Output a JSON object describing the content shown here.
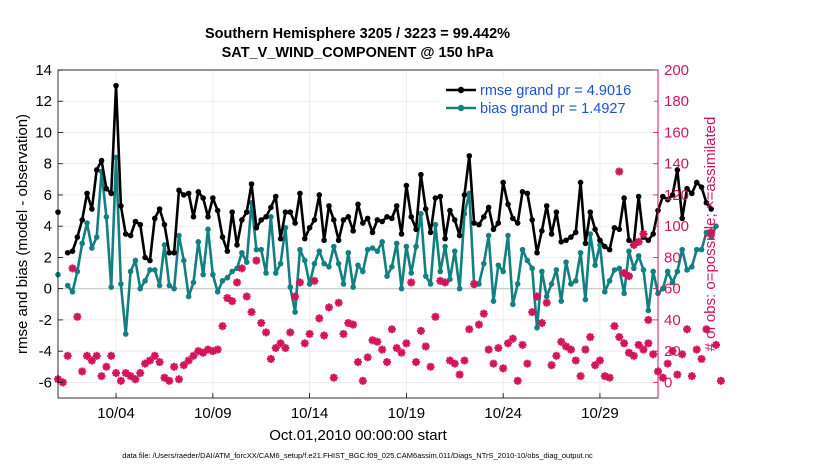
{
  "title": {
    "line1": "Southern Hemisphere 3205 / 3223 = 99.442%",
    "line2": "SAT_V_WIND_COMPONENT @ 150 hPa"
  },
  "footer": "data file: /Users/raeder/DAI/ATM_forcXX/CAM6_setup/f.e21.FHIST_BGC.f09_025.CAM6assim.011/Diags_NTrS_2010-10/obs_diag_output.nc",
  "colors": {
    "rmse": "#000000",
    "bias": "#128080",
    "obs": "#d4145a",
    "right_axis": "#d4145a",
    "legend_text": "#1a52d6",
    "zero": "#c8c8c8"
  },
  "chart_data": {
    "type": "line",
    "xlabel": "Oct.01,2010 00:00:00 start",
    "ylabel_left": "rmse and bias (model - observation)",
    "ylabel_right": "# of obs: o=possible; ×=assimilated",
    "x_start_day": 1.0,
    "x_step_days": 0.25,
    "xlim": [
      1.0,
      32.0
    ],
    "ylim_left": [
      -7,
      14
    ],
    "ylim_right": [
      -10,
      200
    ],
    "x_ticks": [
      {
        "day": 4,
        "label": "10/04"
      },
      {
        "day": 9,
        "label": "10/09"
      },
      {
        "day": 14,
        "label": "10/14"
      },
      {
        "day": 19,
        "label": "10/19"
      },
      {
        "day": 24,
        "label": "10/24"
      },
      {
        "day": 29,
        "label": "10/29"
      }
    ],
    "y_ticks_left": [
      -6,
      -4,
      -2,
      0,
      2,
      4,
      6,
      8,
      10,
      12,
      14
    ],
    "y_ticks_right": [
      0,
      20,
      40,
      60,
      80,
      100,
      120,
      140,
      160,
      180,
      200
    ],
    "series": [
      {
        "name": "rmse",
        "legend": "rmse grand pr = 4.9016",
        "values": [
          4.9,
          null,
          2.3,
          2.4,
          3.3,
          4.4,
          6.1,
          5.1,
          7.6,
          8.2,
          6.4,
          6.1,
          13.0,
          5.3,
          3.5,
          3.4,
          4.3,
          4.1,
          2.0,
          1.8,
          4.5,
          5.1,
          4.1,
          2.3,
          2.3,
          6.3,
          6.0,
          6.1,
          4.6,
          6.2,
          5.8,
          4.6,
          5.8,
          5.0,
          3.3,
          2.4,
          4.9,
          2.8,
          4.4,
          4.9,
          6.7,
          3.9,
          4.4,
          4.6,
          5.2,
          5.9,
          3.2,
          4.9,
          4.9,
          4.2,
          6.1,
          3.2,
          3.9,
          4.4,
          6.0,
          3.1,
          5.3,
          4.4,
          3.1,
          4.4,
          4.6,
          3.7,
          5.4,
          4.2,
          4.5,
          3.6,
          4.4,
          4.3,
          4.6,
          4.5,
          5.3,
          3.5,
          6.6,
          4.6,
          3.8,
          7.3,
          5.1,
          3.6,
          5.8,
          5.9,
          3.2,
          5.0,
          4.4,
          3.4,
          6.0,
          8.5,
          4.2,
          4.1,
          4.6,
          5.2,
          3.8,
          4.2,
          6.8,
          5.4,
          4.5,
          4.2,
          6.2,
          6.1,
          4.4,
          2.3,
          3.7,
          5.3,
          3.5,
          4.9,
          3.0,
          3.1,
          3.3,
          3.6,
          6.8,
          2.9,
          4.9,
          3.8,
          3.1,
          2.7,
          2.5,
          3.9,
          3.8,
          5.8,
          3.1,
          2.9,
          5.9,
          3.3,
          3.1,
          3.5,
          5.0,
          5.9,
          5.7,
          6.0,
          7.6,
          4.5,
          6.4,
          6.1,
          6.8,
          6.5,
          5.5,
          5.1
        ],
        "color": "#000000"
      },
      {
        "name": "bias",
        "legend": "bias grand pr = 1.4927",
        "values": [
          0.9,
          null,
          0.2,
          -0.2,
          1.1,
          2.9,
          4.2,
          2.6,
          3.3,
          7.5,
          4.6,
          0.1,
          8.4,
          0.3,
          -2.9,
          1.1,
          1.8,
          0.0,
          0.5,
          1.2,
          1.2,
          0.2,
          2.8,
          0.2,
          0.0,
          3.4,
          1.8,
          -0.5,
          0.4,
          3.0,
          0.9,
          3.8,
          0.9,
          -0.2,
          0.5,
          0.7,
          1.1,
          1.3,
          2.3,
          1.7,
          5.5,
          2.5,
          2.5,
          1.0,
          4.6,
          1.0,
          1.6,
          3.9,
          0.1,
          -1.5,
          2.5,
          1.8,
          0.3,
          1.6,
          2.4,
          1.6,
          1.4,
          2.7,
          1.6,
          0.3,
          2.3,
          0.1,
          1.5,
          1.1,
          2.5,
          2.6,
          2.4,
          3.0,
          0.8,
          1.4,
          2.9,
          0.0,
          2.7,
          1.0,
          2.7,
          4.8,
          0.8,
          0.3,
          4.1,
          1.1,
          2.7,
          0.6,
          2.4,
          0.0,
          4.8,
          6.1,
          0.2,
          0.3,
          1.6,
          3.4,
          -0.8,
          1.5,
          1.1,
          3.4,
          -1.0,
          0.3,
          2.5,
          1.8,
          1.3,
          -2.5,
          1.1,
          -0.5,
          0.3,
          1.2,
          -0.8,
          1.7,
          0.3,
          0.5,
          2.3,
          -0.7,
          3.5,
          1.5,
          2.8,
          -0.2,
          0.5,
          1.2,
          1.3,
          -0.3,
          2.4,
          1.3,
          2.1,
          1.2,
          -1.4,
          1.1,
          -0.3,
          0.0,
          1.1,
          0.4,
          1.1,
          2.5,
          1.2,
          1.4,
          2.5,
          2.5,
          3.6,
          3.3,
          4.0
        ],
        "color": "#128080"
      },
      {
        "name": "obs_assimilated",
        "axis": "right",
        "values": [
          2,
          0,
          17,
          73,
          42,
          7,
          17,
          14,
          17,
          4,
          10,
          17,
          6,
          1,
          6,
          4,
          2,
          6,
          12,
          14,
          17,
          13,
          3,
          1,
          10,
          2,
          11,
          14,
          17,
          20,
          19,
          21,
          20,
          21,
          36,
          54,
          52,
          64,
          73,
          55,
          45,
          78,
          38,
          32,
          15,
          22,
          25,
          22,
          32,
          55,
          64,
          25,
          31,
          65,
          41,
          30,
          48,
          3,
          51,
          31,
          38,
          37,
          13,
          1,
          16,
          27,
          26,
          21,
          13,
          34,
          22,
          19,
          25,
          64,
          13,
          33,
          23,
          10,
          42,
          65,
          64,
          14,
          12,
          5,
          14,
          34,
          63,
          37,
          44,
          21,
          12,
          22,
          9,
          25,
          28,
          1,
          24,
          12,
          45,
          55,
          38,
          51,
          11,
          17,
          26,
          23,
          21,
          14,
          4,
          21,
          29,
          11,
          14,
          4,
          3,
          36,
          29,
          25,
          19,
          17,
          24,
          21,
          25,
          18,
          7,
          3,
          12,
          20,
          5,
          18,
          34,
          4,
          21,
          15,
          34,
          96,
          24,
          1
        ]
      }
    ],
    "obs_extra": [
      {
        "day": 30.0,
        "value": 135
      },
      {
        "day": 30.25,
        "value": 70
      },
      {
        "day": 30.5,
        "value": 68
      },
      {
        "day": 30.75,
        "value": 88
      },
      {
        "day": 31.0,
        "value": 90
      },
      {
        "day": 31.25,
        "value": 95
      },
      {
        "day": 31.5,
        "value": 40
      }
    ]
  }
}
